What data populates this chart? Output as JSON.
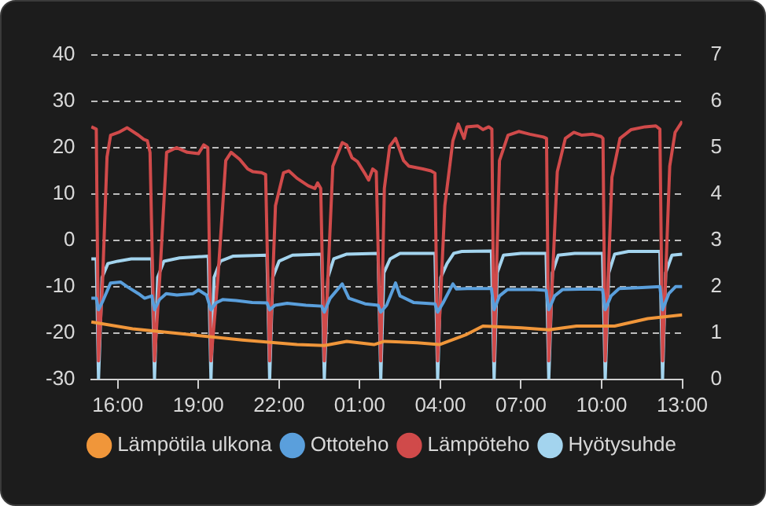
{
  "chart_data": {
    "type": "line",
    "xlim": [
      "--01-01T15:00",
      "--01-02T13:00"
    ],
    "xticks": [
      {
        "value": "--01-01T16:00",
        "label": "16:00"
      },
      {
        "value": "--01-01T19:00",
        "label": "19:00"
      },
      {
        "value": "--01-01T22:00",
        "label": "22:00"
      },
      {
        "value": "--01-02T01:00",
        "label": "01:00"
      },
      {
        "value": "--01-02T04:00",
        "label": "04:00"
      },
      {
        "value": "--01-02T07:00",
        "label": "07:00"
      },
      {
        "value": "--01-02T10:00",
        "label": "10:00"
      },
      {
        "value": "--01-02T13:00",
        "label": "13:00"
      }
    ],
    "ylim": [
      -30,
      40
    ],
    "yticks": [
      -30,
      -20,
      -10,
      0,
      10,
      20,
      30,
      40
    ],
    "y2lim": [
      0,
      7
    ],
    "y2ticks": [
      0,
      1,
      2,
      3,
      4,
      5,
      6,
      7
    ],
    "grid": "y",
    "legend": "bottom",
    "marker": "none",
    "line_style": "solid",
    "series": [
      {
        "name": "Lämpötila ulkona",
        "color": "#f0963a",
        "x": [
          "--01-01T15:01",
          "--01-01T16:33",
          "--01-01T18:35",
          "--01-01T20:38",
          "--01-01T22:40",
          "--01-01T23:41",
          "--01-02T00:31",
          "--01-02T01:32",
          "--01-02T01:55",
          "--01-02T03:08",
          "--01-02T03:58",
          "--01-02T04:59",
          "--01-02T05:35",
          "--01-02T07:01",
          "--01-02T08:02",
          "--01-02T09:04",
          "--01-02T10:29",
          "--01-02T11:43",
          "--01-02T13:00"
        ],
        "values": [
          -17.6,
          -19.1,
          -20.3,
          -21.5,
          -22.5,
          -22.7,
          -21.8,
          -22.5,
          -21.8,
          -22.1,
          -22.5,
          -20.3,
          -18.5,
          -18.9,
          -19.3,
          -18.5,
          -18.5,
          -16.9,
          -16.1
        ]
      },
      {
        "name": "Ottoteho",
        "color": "#5a9fdc",
        "axis": "y2",
        "x": [
          "--01-01T15:01",
          "--01-01T15:12",
          "--01-01T15:17",
          "--01-01T15:27",
          "--01-01T15:44",
          "--01-01T16:06",
          "--01-01T16:21",
          "--01-01T16:46",
          "--01-01T17:00",
          "--01-01T17:16",
          "--01-01T17:22",
          "--01-01T17:33",
          "--01-01T17:48",
          "--01-01T18:12",
          "--01-01T18:48",
          "--01-01T19:00",
          "--01-01T19:18",
          "--01-01T19:28",
          "--01-01T19:39",
          "--01-01T19:54",
          "--01-01T20:24",
          "--01-01T21:00",
          "--01-01T21:33",
          "--01-01T21:39",
          "--01-01T21:51",
          "--01-01T22:18",
          "--01-01T23:00",
          "--01-01T23:35",
          "--01-01T23:41",
          "--01-01T23:54",
          "--01-02T00:21",
          "--01-02T00:36",
          "--01-02T01:12",
          "--01-02T01:41",
          "--01-02T01:47",
          "--01-02T02:00",
          "--01-02T02:20",
          "--01-02T02:30",
          "--01-02T03:00",
          "--01-02T03:48",
          "--01-02T03:54",
          "--01-02T04:06",
          "--01-02T04:28",
          "--01-02T04:36",
          "--01-02T05:00",
          "--01-02T05:54",
          "--01-02T06:00",
          "--01-02T06:12",
          "--01-02T06:30",
          "--01-02T07:30",
          "--01-02T07:56",
          "--01-02T08:02",
          "--01-02T08:15",
          "--01-02T08:33",
          "--01-02T09:30",
          "--01-02T10:02",
          "--01-02T10:08",
          "--01-02T10:21",
          "--01-02T10:39",
          "--01-02T11:30",
          "--01-02T12:10",
          "--01-02T12:16",
          "--01-02T12:30",
          "--01-02T12:45",
          "--01-02T13:00"
        ],
        "values": [
          1.75,
          1.75,
          1.5,
          1.7,
          2.08,
          2.1,
          2.0,
          1.85,
          1.75,
          1.8,
          1.5,
          1.72,
          1.85,
          1.82,
          1.85,
          1.93,
          1.82,
          1.5,
          1.65,
          1.72,
          1.7,
          1.66,
          1.65,
          1.5,
          1.6,
          1.64,
          1.6,
          1.58,
          1.45,
          1.75,
          2.06,
          1.75,
          1.63,
          1.6,
          1.45,
          1.6,
          2.08,
          1.8,
          1.66,
          1.63,
          1.45,
          1.65,
          2.06,
          1.95,
          1.96,
          1.96,
          1.5,
          1.8,
          1.94,
          1.94,
          1.92,
          1.5,
          1.8,
          1.94,
          1.95,
          1.94,
          1.5,
          1.8,
          1.96,
          1.98,
          2.0,
          1.5,
          1.85,
          2.0,
          2.0
        ]
      },
      {
        "name": "Lämpöteho",
        "color": "#d04a4a",
        "axis": "y2",
        "x": [
          "--01-01T15:01",
          "--01-01T15:12",
          "--01-01T15:17",
          "--01-01T15:26",
          "--01-01T15:36",
          "--01-01T15:44",
          "--01-01T16:02",
          "--01-01T16:21",
          "--01-01T16:46",
          "--01-01T16:58",
          "--01-01T17:06",
          "--01-01T17:12",
          "--01-01T17:22",
          "--01-01T17:34",
          "--01-01T17:49",
          "--01-01T18:11",
          "--01-01T18:35",
          "--01-01T19:00",
          "--01-01T19:12",
          "--01-01T19:21",
          "--01-01T19:28",
          "--01-01T19:43",
          "--01-01T20:01",
          "--01-01T20:13",
          "--01-01T20:32",
          "--01-01T20:50",
          "--01-01T21:02",
          "--01-01T21:21",
          "--01-01T21:30",
          "--01-01T21:39",
          "--01-01T21:52",
          "--01-01T22:10",
          "--01-01T22:22",
          "--01-01T22:40",
          "--01-01T23:05",
          "--01-01T23:20",
          "--01-01T23:26",
          "--01-01T23:33",
          "--01-01T23:41",
          "--01-02T00:00",
          "--01-02T00:21",
          "--01-02T00:31",
          "--01-02T00:43",
          "--01-02T00:55",
          "--01-02T01:13",
          "--01-02T01:20",
          "--01-02T01:29",
          "--01-02T01:37",
          "--01-02T01:47",
          "--01-02T01:55",
          "--01-02T02:07",
          "--01-02T02:20",
          "--01-02T02:38",
          "--01-02T02:50",
          "--01-02T03:21",
          "--01-02T03:39",
          "--01-02T03:48",
          "--01-02T03:54",
          "--01-02T04:10",
          "--01-02T04:28",
          "--01-02T04:40",
          "--01-02T04:53",
          "--01-02T04:59",
          "--01-02T05:23",
          "--01-02T05:35",
          "--01-02T05:48",
          "--01-02T05:55",
          "--01-02T06:00",
          "--01-02T06:12",
          "--01-02T06:31",
          "--01-02T06:55",
          "--01-02T07:20",
          "--01-02T07:50",
          "--01-02T07:57",
          "--01-02T08:02",
          "--01-02T08:21",
          "--01-02T08:39",
          "--01-02T08:58",
          "--01-02T09:16",
          "--01-02T09:40",
          "--01-02T09:59",
          "--01-02T10:03",
          "--01-02T10:08",
          "--01-02T10:23",
          "--01-02T10:41",
          "--01-02T11:06",
          "--01-02T11:37",
          "--01-02T12:01",
          "--01-02T12:10",
          "--01-02T12:16",
          "--01-02T12:32",
          "--01-02T12:44",
          "--01-02T13:00"
        ],
        "values": [
          5.45,
          5.4,
          0.4,
          2.1,
          4.8,
          5.27,
          5.33,
          5.43,
          5.27,
          5.18,
          5.15,
          4.9,
          0.4,
          2.24,
          4.9,
          5.0,
          4.9,
          4.87,
          5.06,
          5.0,
          0.4,
          2.12,
          4.72,
          4.9,
          4.75,
          4.54,
          4.48,
          4.46,
          4.42,
          0.4,
          3.75,
          4.46,
          4.5,
          4.34,
          4.18,
          4.12,
          4.24,
          4.12,
          0.4,
          4.6,
          5.11,
          5.06,
          4.78,
          4.7,
          4.42,
          4.3,
          4.54,
          4.48,
          0.4,
          4.12,
          5.03,
          5.2,
          4.72,
          4.6,
          4.54,
          4.5,
          4.45,
          0.4,
          3.75,
          5.15,
          5.51,
          5.2,
          5.45,
          5.47,
          5.39,
          5.45,
          5.4,
          0.4,
          4.72,
          5.27,
          5.35,
          5.29,
          5.23,
          5.2,
          0.4,
          4.48,
          5.2,
          5.33,
          5.27,
          5.29,
          5.24,
          5.2,
          0.4,
          4.36,
          5.2,
          5.39,
          5.45,
          5.47,
          5.4,
          0.4,
          4.6,
          5.33,
          5.57
        ]
      },
      {
        "name": "Hyötysuhde",
        "color": "#a3d4ee",
        "axis": "y2",
        "x": [
          "--01-01T15:01",
          "--01-01T15:12",
          "--01-01T15:17",
          "--01-01T15:25",
          "--01-01T15:38",
          "--01-01T16:00",
          "--01-01T16:30",
          "--01-01T17:16",
          "--01-01T17:22",
          "--01-01T17:29",
          "--01-01T17:43",
          "--01-01T18:18",
          "--01-01T19:22",
          "--01-01T19:28",
          "--01-01T19:35",
          "--01-01T19:49",
          "--01-01T20:18",
          "--01-01T21:33",
          "--01-01T21:39",
          "--01-01T21:46",
          "--01-01T22:00",
          "--01-01T22:30",
          "--01-01T23:35",
          "--01-01T23:41",
          "--01-01T23:49",
          "--01-02T00:02",
          "--01-02T00:30",
          "--01-02T01:41",
          "--01-02T01:47",
          "--01-02T01:54",
          "--01-02T02:08",
          "--01-02T02:30",
          "--01-02T03:48",
          "--01-02T03:54",
          "--01-02T04:01",
          "--01-02T04:15",
          "--01-02T04:30",
          "--01-02T04:48",
          "--01-02T05:54",
          "--01-02T06:00",
          "--01-02T06:07",
          "--01-02T06:21",
          "--01-02T07:00",
          "--01-02T07:56",
          "--01-02T08:02",
          "--01-02T08:10",
          "--01-02T08:23",
          "--01-02T09:00",
          "--01-02T10:02",
          "--01-02T10:08",
          "--01-02T10:16",
          "--01-02T10:29",
          "--01-02T11:00",
          "--01-02T12:10",
          "--01-02T12:16",
          "--01-02T12:23",
          "--01-02T12:37",
          "--01-02T13:00"
        ],
        "values": [
          2.6,
          2.6,
          0,
          2.2,
          2.5,
          2.55,
          2.6,
          2.6,
          0,
          2.2,
          2.55,
          2.62,
          2.66,
          0,
          2.2,
          2.55,
          2.66,
          2.68,
          0,
          2.2,
          2.55,
          2.68,
          2.7,
          0,
          2.2,
          2.6,
          2.7,
          2.72,
          0,
          2.3,
          2.6,
          2.72,
          2.72,
          0,
          2.2,
          2.5,
          2.72,
          2.76,
          2.77,
          0,
          2.3,
          2.68,
          2.72,
          2.72,
          0,
          2.3,
          2.68,
          2.72,
          2.72,
          0,
          2.3,
          2.7,
          2.76,
          2.76,
          0,
          2.3,
          2.68,
          2.7
        ]
      }
    ]
  }
}
